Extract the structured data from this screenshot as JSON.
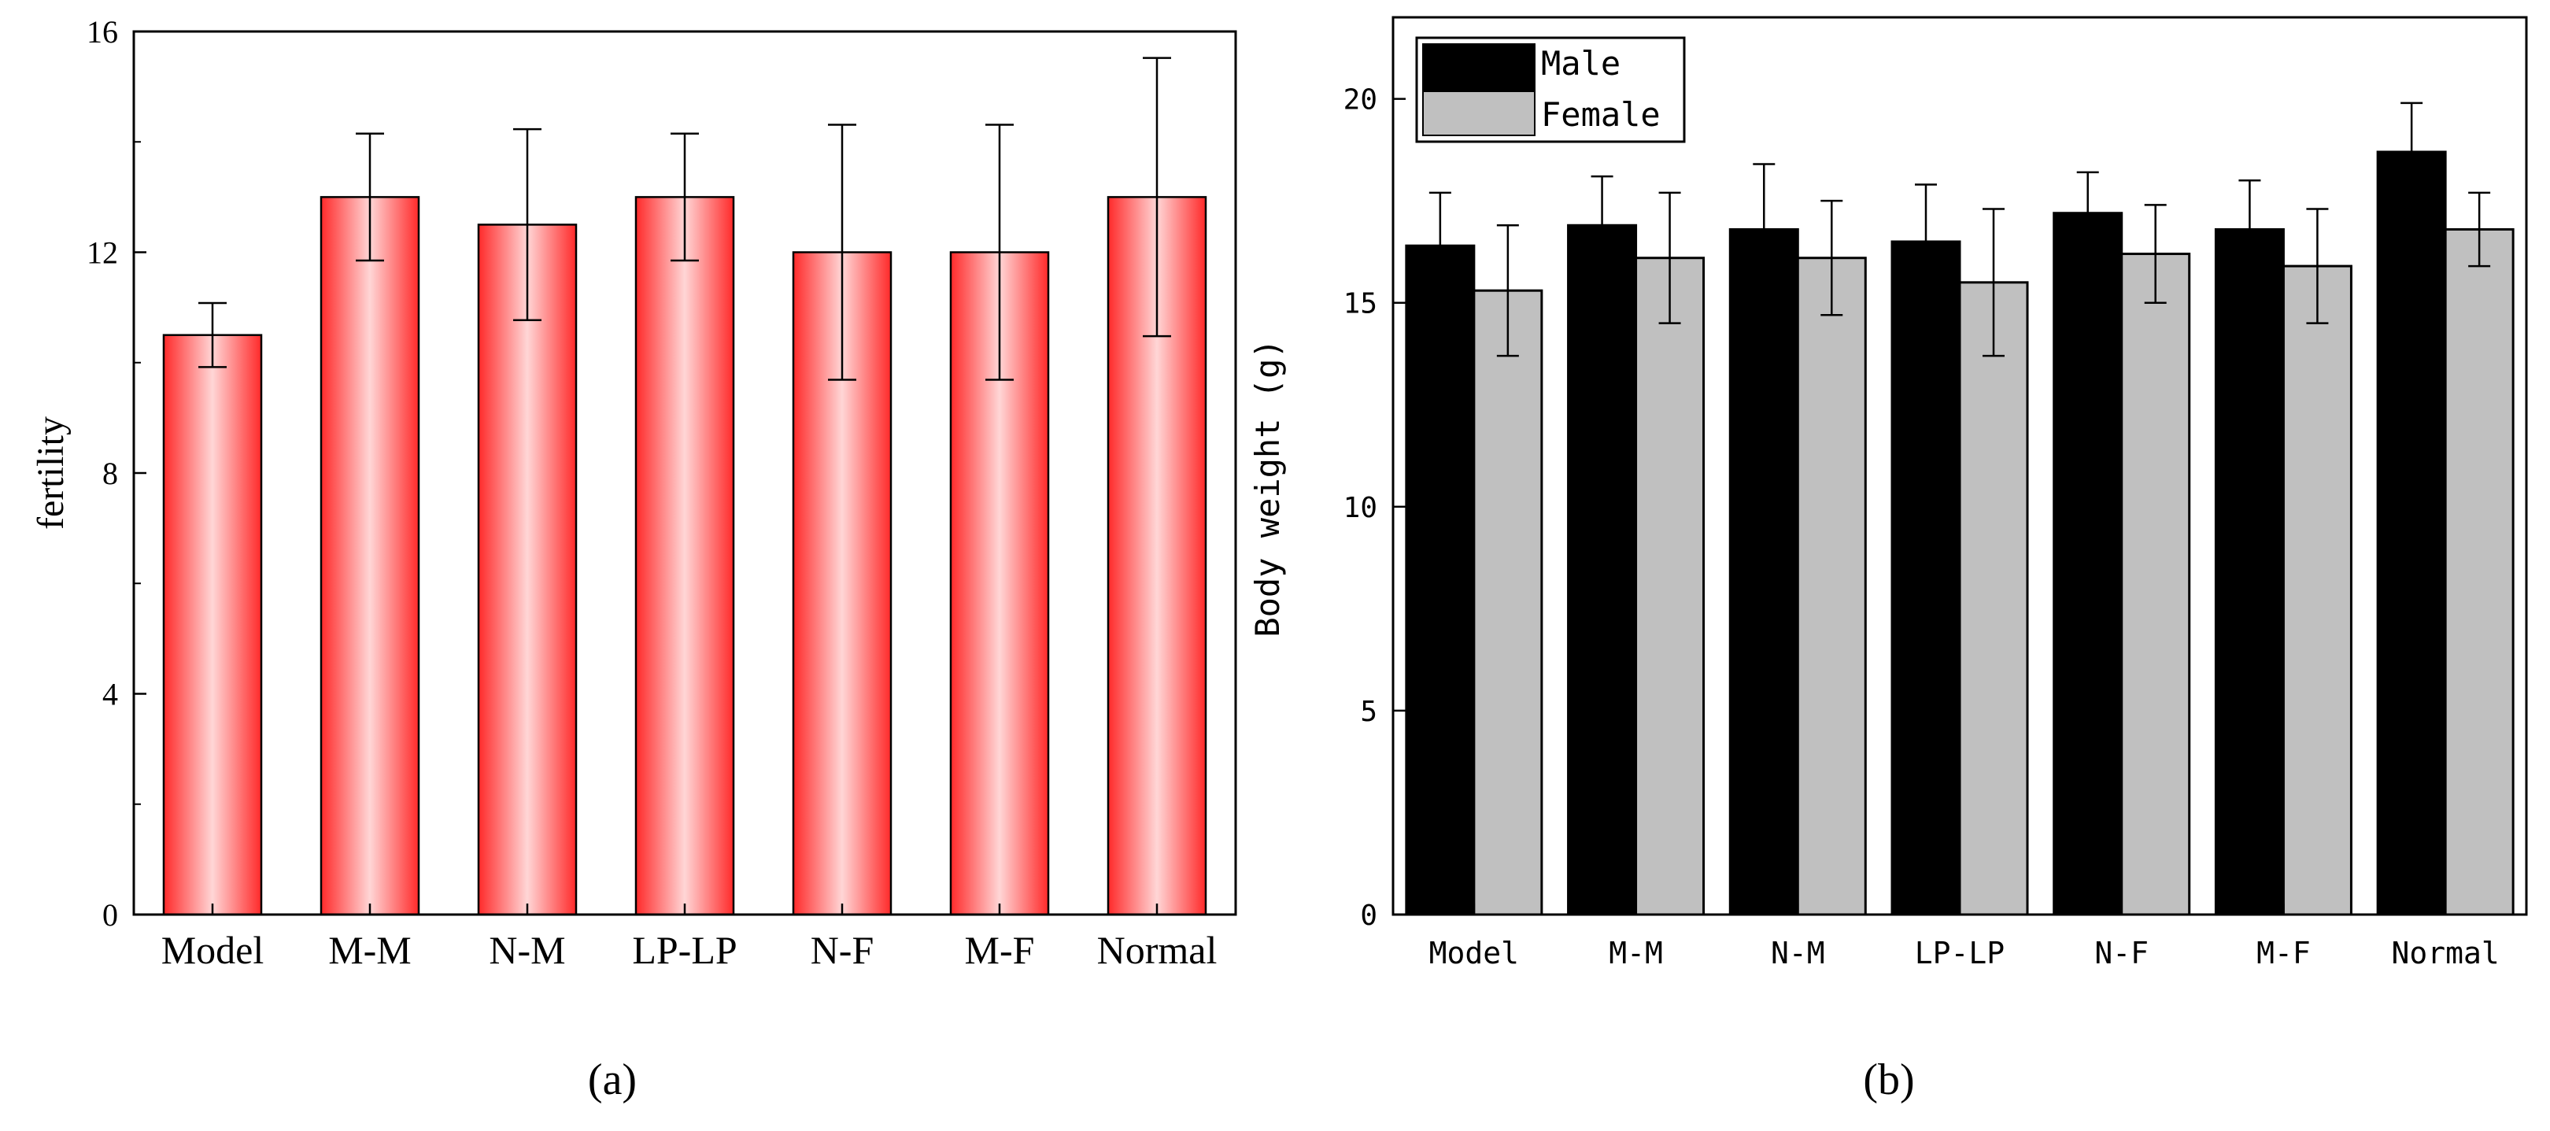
{
  "chart_data": [
    {
      "type": "bar",
      "panel_label": "(a)",
      "title": "",
      "xlabel": "",
      "ylabel": "fertility",
      "ylim": [
        0,
        16
      ],
      "yticks": [
        "0",
        "4",
        "8",
        "12",
        "16"
      ],
      "categories": [
        "Model",
        "M-M",
        "N-M",
        "LP-LP",
        "N-F",
        "M-F",
        "Normal"
      ],
      "series": [
        {
          "name": "fertility",
          "values": [
            10.5,
            13.0,
            12.5,
            13.0,
            12.0,
            12.0,
            13.0
          ],
          "errors": [
            0.58,
            1.15,
            1.73,
            1.15,
            2.31,
            2.31,
            2.52
          ],
          "color": "#ff3b3b"
        }
      ],
      "grid": false,
      "legend": "none"
    },
    {
      "type": "bar",
      "panel_label": "(b)",
      "title": "",
      "xlabel": "",
      "ylabel": "Body weight (g)",
      "ylim": [
        0,
        22
      ],
      "yticks": [
        "0",
        "5",
        "10",
        "15",
        "20"
      ],
      "categories": [
        "Model",
        "M-M",
        "N-M",
        "LP-LP",
        "N-F",
        "M-F",
        "Normal"
      ],
      "series": [
        {
          "name": "Male",
          "values": [
            16.4,
            16.9,
            16.8,
            16.5,
            17.2,
            16.8,
            18.7
          ],
          "errors": [
            1.3,
            1.2,
            1.6,
            1.4,
            1.0,
            1.2,
            1.2
          ],
          "color": "#000000"
        },
        {
          "name": "Female",
          "values": [
            15.3,
            16.1,
            16.1,
            15.5,
            16.2,
            15.9,
            16.8
          ],
          "errors": [
            1.6,
            1.6,
            1.4,
            1.8,
            1.2,
            1.4,
            0.9
          ],
          "color": "#c0c0c0"
        }
      ],
      "grid": false,
      "legend": "top-left"
    }
  ]
}
